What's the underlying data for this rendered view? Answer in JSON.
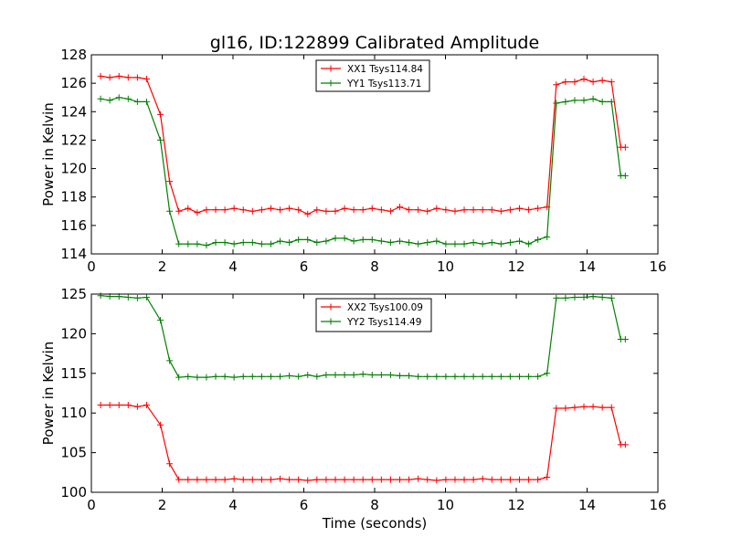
{
  "figure": {
    "title": "gl16, ID:122899 Calibrated Amplitude",
    "xlabel": "Time (seconds)"
  },
  "chart_data": [
    {
      "type": "line",
      "title": "gl16, ID:122899 Calibrated Amplitude",
      "xlabel": "",
      "ylabel": "Power in Kelvin",
      "xlim": [
        0,
        16
      ],
      "ylim": [
        114,
        128
      ],
      "xticks": [
        0,
        2,
        4,
        6,
        8,
        10,
        12,
        14,
        16
      ],
      "yticks": [
        114,
        116,
        118,
        120,
        122,
        124,
        126,
        128
      ],
      "grid": false,
      "legend_position": "top-center",
      "x": [
        0.26,
        0.52,
        0.78,
        1.04,
        1.3,
        1.56,
        1.95,
        2.21,
        2.47,
        2.73,
        2.99,
        3.25,
        3.51,
        3.77,
        4.03,
        4.29,
        4.55,
        4.81,
        5.07,
        5.33,
        5.59,
        5.85,
        6.11,
        6.37,
        6.63,
        6.89,
        7.15,
        7.41,
        7.67,
        7.93,
        8.19,
        8.45,
        8.71,
        8.97,
        9.23,
        9.49,
        9.75,
        10.01,
        10.27,
        10.53,
        10.79,
        11.05,
        11.31,
        11.57,
        11.83,
        12.09,
        12.35,
        12.61,
        12.87,
        13.13,
        13.39,
        13.65,
        13.91,
        14.17,
        14.43,
        14.69,
        14.95,
        15.08
      ],
      "series": [
        {
          "name": "XX1 Tsys114.84",
          "color": "#ff0000",
          "values": [
            126.5,
            126.4,
            126.5,
            126.4,
            126.4,
            126.3,
            123.8,
            119.1,
            117.0,
            117.2,
            116.9,
            117.1,
            117.1,
            117.1,
            117.2,
            117.1,
            117.0,
            117.1,
            117.2,
            117.1,
            117.2,
            117.1,
            116.8,
            117.1,
            117.0,
            117.0,
            117.2,
            117.1,
            117.1,
            117.2,
            117.1,
            117.0,
            117.3,
            117.1,
            117.1,
            117.0,
            117.2,
            117.1,
            117.0,
            117.1,
            117.1,
            117.1,
            117.1,
            117.0,
            117.1,
            117.2,
            117.1,
            117.2,
            117.3,
            125.9,
            126.1,
            126.1,
            126.3,
            126.1,
            126.2,
            126.1,
            121.5,
            121.5
          ]
        },
        {
          "name": "YY1 Tsys113.71",
          "color": "#008000",
          "values": [
            124.9,
            124.8,
            125.0,
            124.9,
            124.7,
            124.7,
            122.0,
            117.0,
            114.7,
            114.7,
            114.7,
            114.6,
            114.8,
            114.8,
            114.7,
            114.8,
            114.8,
            114.7,
            114.7,
            114.9,
            114.8,
            115.0,
            115.0,
            114.8,
            114.9,
            115.1,
            115.1,
            114.9,
            115.0,
            115.0,
            114.9,
            114.8,
            114.9,
            114.8,
            114.7,
            114.8,
            114.9,
            114.7,
            114.7,
            114.7,
            114.8,
            114.7,
            114.8,
            114.7,
            114.8,
            114.9,
            114.7,
            115.0,
            115.2,
            124.6,
            124.7,
            124.8,
            124.8,
            124.9,
            124.7,
            124.7,
            119.5,
            119.5
          ]
        }
      ]
    },
    {
      "type": "line",
      "title": "",
      "xlabel": "Time (seconds)",
      "ylabel": "Power in Kelvin",
      "xlim": [
        0,
        16
      ],
      "ylim": [
        100,
        125
      ],
      "xticks": [
        0,
        2,
        4,
        6,
        8,
        10,
        12,
        14,
        16
      ],
      "yticks": [
        100,
        105,
        110,
        115,
        120,
        125
      ],
      "grid": false,
      "legend_position": "top-center",
      "x": [
        0.26,
        0.52,
        0.78,
        1.04,
        1.3,
        1.56,
        1.95,
        2.21,
        2.47,
        2.73,
        2.99,
        3.25,
        3.51,
        3.77,
        4.03,
        4.29,
        4.55,
        4.81,
        5.07,
        5.33,
        5.59,
        5.85,
        6.11,
        6.37,
        6.63,
        6.89,
        7.15,
        7.41,
        7.67,
        7.93,
        8.19,
        8.45,
        8.71,
        8.97,
        9.23,
        9.49,
        9.75,
        10.01,
        10.27,
        10.53,
        10.79,
        11.05,
        11.31,
        11.57,
        11.83,
        12.09,
        12.35,
        12.61,
        12.87,
        13.13,
        13.39,
        13.65,
        13.91,
        14.17,
        14.43,
        14.69,
        14.95,
        15.08
      ],
      "series": [
        {
          "name": "XX2 Tsys100.09",
          "color": "#ff0000",
          "values": [
            111.0,
            111.0,
            111.0,
            111.0,
            110.8,
            111.0,
            108.5,
            103.6,
            101.6,
            101.6,
            101.6,
            101.6,
            101.6,
            101.6,
            101.7,
            101.6,
            101.6,
            101.6,
            101.6,
            101.7,
            101.6,
            101.6,
            101.5,
            101.6,
            101.6,
            101.6,
            101.6,
            101.6,
            101.6,
            101.6,
            101.6,
            101.6,
            101.6,
            101.6,
            101.7,
            101.6,
            101.5,
            101.6,
            101.6,
            101.6,
            101.6,
            101.7,
            101.6,
            101.6,
            101.6,
            101.6,
            101.6,
            101.6,
            101.9,
            110.6,
            110.6,
            110.7,
            110.8,
            110.8,
            110.7,
            110.7,
            106.0,
            106.0
          ]
        },
        {
          "name": "YY2 Tsys114.49",
          "color": "#008000",
          "values": [
            124.8,
            124.7,
            124.7,
            124.6,
            124.5,
            124.6,
            121.7,
            116.6,
            114.5,
            114.6,
            114.5,
            114.5,
            114.6,
            114.6,
            114.5,
            114.6,
            114.6,
            114.6,
            114.6,
            114.6,
            114.7,
            114.6,
            114.8,
            114.6,
            114.8,
            114.8,
            114.8,
            114.8,
            114.9,
            114.8,
            114.8,
            114.8,
            114.7,
            114.7,
            114.6,
            114.6,
            114.6,
            114.6,
            114.6,
            114.6,
            114.6,
            114.6,
            114.6,
            114.6,
            114.6,
            114.6,
            114.6,
            114.6,
            115.0,
            124.5,
            124.5,
            124.6,
            124.6,
            124.7,
            124.6,
            124.5,
            119.3,
            119.3
          ]
        }
      ]
    }
  ]
}
